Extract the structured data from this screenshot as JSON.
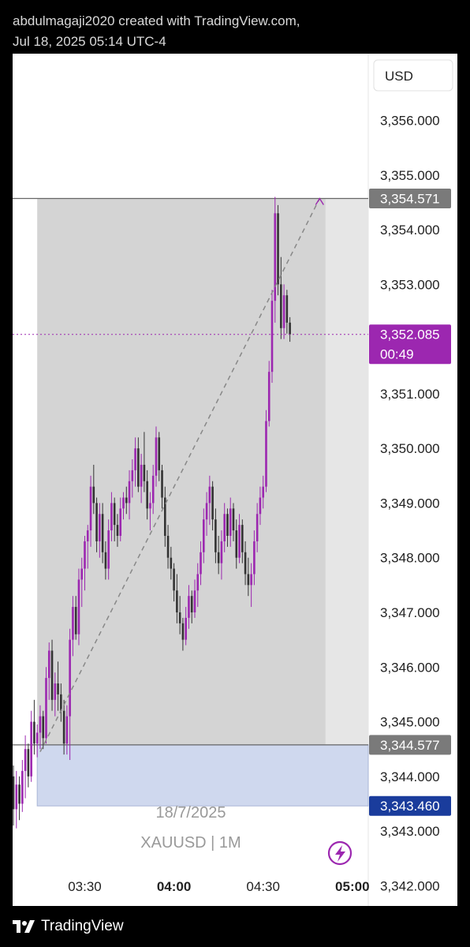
{
  "header": {
    "created_by": "abdulmagaji2020 created with TradingView.com,",
    "timestamp": "Jul 18, 2025 05:14 UTC-4"
  },
  "footer": {
    "brand": "TradingView"
  },
  "chart_data": {
    "type": "candlestick",
    "symbol_label": "XAUUSD | 1M",
    "date_label": "18/7/2025",
    "currency": "USD",
    "ylim": [
      3341.63,
      3357.22
    ],
    "y_ticks": [
      "3,342.000",
      "3,343.000",
      "3,344.000",
      "3,345.000",
      "3,346.000",
      "3,347.000",
      "3,348.000",
      "3,349.000",
      "3,350.000",
      "3,351.000",
      "3,352.000",
      "3,353.000",
      "3,354.000",
      "3,355.000",
      "3,356.000"
    ],
    "y_tick_values": [
      3342,
      3343,
      3344,
      3345,
      3346,
      3347,
      3348,
      3349,
      3350,
      3351,
      3352,
      3353,
      3354,
      3355,
      3356
    ],
    "x_ticks": [
      {
        "label": "03:30",
        "bold": false,
        "minute": 0
      },
      {
        "label": "04:00",
        "bold": true,
        "minute": 30
      },
      {
        "label": "04:30",
        "bold": false,
        "minute": 60
      },
      {
        "label": "05:00",
        "bold": true,
        "minute": 90
      }
    ],
    "first_candle_minute": -27,
    "price_levels": {
      "upper": {
        "value": 3354.571,
        "label": "3,354.571"
      },
      "lower": {
        "value": 3344.577,
        "label": "3,344.577"
      },
      "box_bottom": {
        "value": 3343.46,
        "label": "3,343.460"
      },
      "current": {
        "value": 3352.085,
        "label": "3,352.085",
        "countdown": "00:49"
      }
    },
    "shaded_range": {
      "start_minute": -16,
      "end_minute": 81
    },
    "trend_line": {
      "from": {
        "minute": -15,
        "price": 3344.45
      },
      "to": {
        "minute": 79,
        "price": 3354.571
      }
    },
    "colors": {
      "up": "#9c27b0",
      "down": "#333333",
      "current": "#9c27b0",
      "lower_box": "#1a3c9c",
      "level_label": "#6b6b6b"
    },
    "candles": [
      {
        "o": 3342.0,
        "h": 3342.9,
        "l": 3341.9,
        "c": 3342.75
      },
      {
        "o": 3342.75,
        "h": 3343.6,
        "l": 3342.5,
        "c": 3343.35
      },
      {
        "o": 3343.35,
        "h": 3344.3,
        "l": 3343.0,
        "c": 3344.0
      },
      {
        "o": 3344.0,
        "h": 3344.2,
        "l": 3343.1,
        "c": 3343.4
      },
      {
        "o": 3343.4,
        "h": 3344.1,
        "l": 3343.05,
        "c": 3343.85
      },
      {
        "o": 3343.85,
        "h": 3344.0,
        "l": 3343.2,
        "c": 3343.5
      },
      {
        "o": 3343.5,
        "h": 3344.3,
        "l": 3343.35,
        "c": 3344.1
      },
      {
        "o": 3344.1,
        "h": 3344.75,
        "l": 3343.6,
        "c": 3344.5
      },
      {
        "o": 3344.5,
        "h": 3344.6,
        "l": 3343.8,
        "c": 3344.0
      },
      {
        "o": 3344.0,
        "h": 3345.2,
        "l": 3343.9,
        "c": 3345.0
      },
      {
        "o": 3345.0,
        "h": 3345.4,
        "l": 3344.4,
        "c": 3344.6
      },
      {
        "o": 3344.6,
        "h": 3344.95,
        "l": 3344.35,
        "c": 3344.8
      },
      {
        "o": 3344.8,
        "h": 3345.3,
        "l": 3344.5,
        "c": 3345.1
      },
      {
        "o": 3345.1,
        "h": 3345.2,
        "l": 3344.5,
        "c": 3344.7
      },
      {
        "o": 3344.7,
        "h": 3346.0,
        "l": 3344.6,
        "c": 3345.8
      },
      {
        "o": 3345.8,
        "h": 3346.45,
        "l": 3345.4,
        "c": 3346.3
      },
      {
        "o": 3346.3,
        "h": 3346.5,
        "l": 3345.2,
        "c": 3345.4
      },
      {
        "o": 3345.4,
        "h": 3345.9,
        "l": 3345.1,
        "c": 3345.7
      },
      {
        "o": 3345.7,
        "h": 3346.1,
        "l": 3345.2,
        "c": 3345.5
      },
      {
        "o": 3345.5,
        "h": 3345.7,
        "l": 3345.0,
        "c": 3345.2
      },
      {
        "o": 3345.2,
        "h": 3345.4,
        "l": 3344.4,
        "c": 3344.6
      },
      {
        "o": 3344.6,
        "h": 3345.3,
        "l": 3344.4,
        "c": 3345.1
      },
      {
        "o": 3345.1,
        "h": 3346.7,
        "l": 3344.3,
        "c": 3346.5
      },
      {
        "o": 3346.5,
        "h": 3347.3,
        "l": 3346.2,
        "c": 3347.1
      },
      {
        "o": 3347.1,
        "h": 3347.3,
        "l": 3346.5,
        "c": 3346.6
      },
      {
        "o": 3346.6,
        "h": 3347.8,
        "l": 3346.4,
        "c": 3347.6
      },
      {
        "o": 3347.6,
        "h": 3348.0,
        "l": 3347.1,
        "c": 3347.8
      },
      {
        "o": 3347.8,
        "h": 3348.4,
        "l": 3347.4,
        "c": 3348.3
      },
      {
        "o": 3348.3,
        "h": 3348.6,
        "l": 3347.8,
        "c": 3348.5
      },
      {
        "o": 3348.5,
        "h": 3349.5,
        "l": 3348.2,
        "c": 3349.3
      },
      {
        "o": 3349.3,
        "h": 3349.7,
        "l": 3348.8,
        "c": 3349.0
      },
      {
        "o": 3349.0,
        "h": 3349.1,
        "l": 3348.1,
        "c": 3348.3
      },
      {
        "o": 3348.3,
        "h": 3349.0,
        "l": 3348.0,
        "c": 3348.8
      },
      {
        "o": 3348.8,
        "h": 3349.0,
        "l": 3347.9,
        "c": 3348.1
      },
      {
        "o": 3348.1,
        "h": 3348.3,
        "l": 3347.6,
        "c": 3347.8
      },
      {
        "o": 3347.8,
        "h": 3348.7,
        "l": 3347.6,
        "c": 3348.5
      },
      {
        "o": 3348.5,
        "h": 3349.2,
        "l": 3348.3,
        "c": 3349.0
      },
      {
        "o": 3349.0,
        "h": 3349.1,
        "l": 3348.3,
        "c": 3348.6
      },
      {
        "o": 3348.6,
        "h": 3348.8,
        "l": 3348.2,
        "c": 3348.4
      },
      {
        "o": 3348.4,
        "h": 3349.1,
        "l": 3348.3,
        "c": 3348.9
      },
      {
        "o": 3348.9,
        "h": 3349.2,
        "l": 3348.7,
        "c": 3349.1
      },
      {
        "o": 3349.1,
        "h": 3349.3,
        "l": 3348.8,
        "c": 3349.0
      },
      {
        "o": 3349.0,
        "h": 3349.6,
        "l": 3348.7,
        "c": 3349.4
      },
      {
        "o": 3349.4,
        "h": 3349.8,
        "l": 3349.1,
        "c": 3349.6
      },
      {
        "o": 3349.6,
        "h": 3350.2,
        "l": 3349.3,
        "c": 3350.0
      },
      {
        "o": 3350.0,
        "h": 3350.2,
        "l": 3349.2,
        "c": 3349.3
      },
      {
        "o": 3349.3,
        "h": 3349.9,
        "l": 3349.0,
        "c": 3349.7
      },
      {
        "o": 3349.7,
        "h": 3350.3,
        "l": 3349.2,
        "c": 3349.4
      },
      {
        "o": 3349.4,
        "h": 3349.6,
        "l": 3348.7,
        "c": 3348.9
      },
      {
        "o": 3348.9,
        "h": 3349.2,
        "l": 3348.5,
        "c": 3349.0
      },
      {
        "o": 3349.0,
        "h": 3349.7,
        "l": 3348.8,
        "c": 3349.5
      },
      {
        "o": 3349.5,
        "h": 3350.4,
        "l": 3349.3,
        "c": 3350.2
      },
      {
        "o": 3350.2,
        "h": 3350.3,
        "l": 3349.4,
        "c": 3349.6
      },
      {
        "o": 3349.6,
        "h": 3349.7,
        "l": 3348.9,
        "c": 3349.1
      },
      {
        "o": 3349.1,
        "h": 3349.3,
        "l": 3348.2,
        "c": 3348.4
      },
      {
        "o": 3348.4,
        "h": 3348.6,
        "l": 3347.8,
        "c": 3348.0
      },
      {
        "o": 3348.0,
        "h": 3348.2,
        "l": 3347.6,
        "c": 3347.8
      },
      {
        "o": 3347.8,
        "h": 3347.9,
        "l": 3347.2,
        "c": 3347.4
      },
      {
        "o": 3347.4,
        "h": 3347.7,
        "l": 3346.8,
        "c": 3347.0
      },
      {
        "o": 3347.0,
        "h": 3347.3,
        "l": 3346.6,
        "c": 3346.8
      },
      {
        "o": 3346.8,
        "h": 3346.9,
        "l": 3346.3,
        "c": 3346.5
      },
      {
        "o": 3346.5,
        "h": 3347.1,
        "l": 3346.4,
        "c": 3346.9
      },
      {
        "o": 3346.9,
        "h": 3347.5,
        "l": 3346.7,
        "c": 3347.3
      },
      {
        "o": 3347.3,
        "h": 3347.4,
        "l": 3346.8,
        "c": 3347.0
      },
      {
        "o": 3347.0,
        "h": 3347.6,
        "l": 3346.9,
        "c": 3347.4
      },
      {
        "o": 3347.4,
        "h": 3347.9,
        "l": 3347.1,
        "c": 3347.7
      },
      {
        "o": 3347.7,
        "h": 3348.3,
        "l": 3347.5,
        "c": 3348.1
      },
      {
        "o": 3348.1,
        "h": 3348.9,
        "l": 3347.9,
        "c": 3348.7
      },
      {
        "o": 3348.7,
        "h": 3349.2,
        "l": 3348.4,
        "c": 3349.0
      },
      {
        "o": 3349.0,
        "h": 3349.5,
        "l": 3348.6,
        "c": 3349.3
      },
      {
        "o": 3349.3,
        "h": 3349.4,
        "l": 3348.5,
        "c": 3348.7
      },
      {
        "o": 3348.7,
        "h": 3348.9,
        "l": 3347.9,
        "c": 3348.1
      },
      {
        "o": 3348.1,
        "h": 3348.4,
        "l": 3347.7,
        "c": 3347.9
      },
      {
        "o": 3347.9,
        "h": 3348.5,
        "l": 3347.6,
        "c": 3348.3
      },
      {
        "o": 3348.3,
        "h": 3349.0,
        "l": 3348.1,
        "c": 3348.8
      },
      {
        "o": 3348.8,
        "h": 3348.9,
        "l": 3348.2,
        "c": 3348.4
      },
      {
        "o": 3348.4,
        "h": 3349.1,
        "l": 3348.2,
        "c": 3348.9
      },
      {
        "o": 3348.9,
        "h": 3349.0,
        "l": 3348.3,
        "c": 3348.5
      },
      {
        "o": 3348.5,
        "h": 3348.7,
        "l": 3347.8,
        "c": 3348.0
      },
      {
        "o": 3348.0,
        "h": 3348.8,
        "l": 3347.9,
        "c": 3348.6
      },
      {
        "o": 3348.6,
        "h": 3348.7,
        "l": 3347.9,
        "c": 3348.1
      },
      {
        "o": 3348.1,
        "h": 3348.3,
        "l": 3347.5,
        "c": 3347.7
      },
      {
        "o": 3347.7,
        "h": 3348.0,
        "l": 3347.3,
        "c": 3347.5
      },
      {
        "o": 3347.5,
        "h": 3347.9,
        "l": 3347.1,
        "c": 3347.7
      },
      {
        "o": 3347.7,
        "h": 3348.5,
        "l": 3347.5,
        "c": 3348.3
      },
      {
        "o": 3348.3,
        "h": 3349.0,
        "l": 3348.1,
        "c": 3348.8
      },
      {
        "o": 3348.8,
        "h": 3349.3,
        "l": 3348.6,
        "c": 3349.1
      },
      {
        "o": 3349.1,
        "h": 3349.5,
        "l": 3348.9,
        "c": 3349.3
      },
      {
        "o": 3349.3,
        "h": 3350.7,
        "l": 3349.2,
        "c": 3350.5
      },
      {
        "o": 3350.5,
        "h": 3351.6,
        "l": 3350.4,
        "c": 3351.4
      },
      {
        "o": 3351.4,
        "h": 3352.9,
        "l": 3351.2,
        "c": 3352.7
      },
      {
        "o": 3352.7,
        "h": 3354.6,
        "l": 3352.3,
        "c": 3354.3
      },
      {
        "o": 3354.3,
        "h": 3354.45,
        "l": 3352.8,
        "c": 3353.0
      },
      {
        "o": 3353.0,
        "h": 3353.5,
        "l": 3352.0,
        "c": 3352.2
      },
      {
        "o": 3352.2,
        "h": 3353.0,
        "l": 3352.0,
        "c": 3352.8
      },
      {
        "o": 3352.8,
        "h": 3352.9,
        "l": 3352.1,
        "c": 3352.3
      },
      {
        "o": 3352.3,
        "h": 3352.4,
        "l": 3351.95,
        "c": 3352.085
      }
    ]
  }
}
